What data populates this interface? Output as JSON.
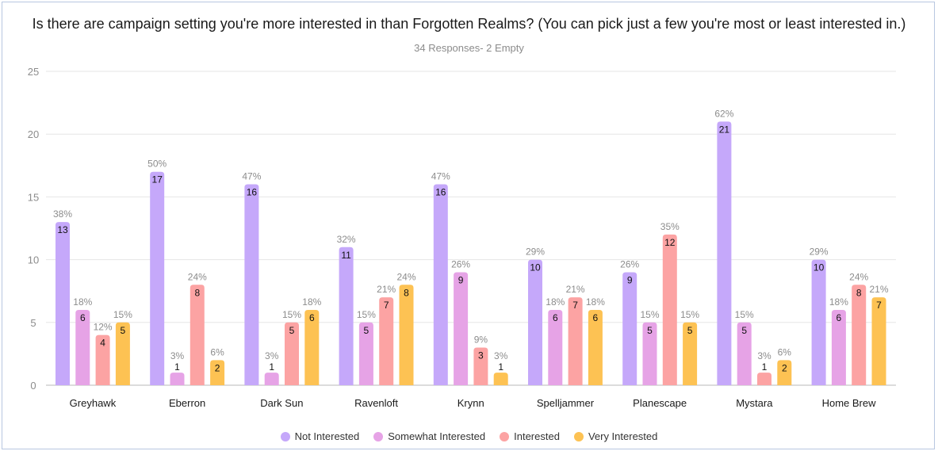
{
  "title": "Is there are campaign setting you're more interested in than Forgotten Realms? (You can pick just a few you're most or least interested in.)",
  "subtitle": "34 Responses- 2 Empty",
  "chart_data": {
    "type": "bar",
    "title": "Is there are campaign setting you're more interested in than Forgotten Realms? (You can pick just a few you're most or least interested in.)",
    "subtitle": "34 Responses- 2 Empty",
    "categories": [
      "Greyhawk",
      "Eberron",
      "Dark Sun",
      "Ravenloft",
      "Krynn",
      "Spelljammer",
      "Planescape",
      "Mystara",
      "Home Brew"
    ],
    "yticks": [
      "0",
      "5",
      "10",
      "15",
      "20",
      "25"
    ],
    "ylim": [
      0,
      25
    ],
    "grid": true,
    "legend_position": "bottom",
    "series": [
      {
        "name": "Not Interested",
        "color": "#c5a8fa",
        "values": [
          13,
          17,
          16,
          11,
          16,
          10,
          9,
          21,
          10
        ],
        "percents": [
          "38%",
          "50%",
          "47%",
          "32%",
          "47%",
          "29%",
          "26%",
          "62%",
          "29%"
        ]
      },
      {
        "name": "Somewhat Interested",
        "color": "#e6a3e6",
        "values": [
          6,
          1,
          1,
          5,
          9,
          6,
          5,
          5,
          6
        ],
        "percents": [
          "18%",
          "3%",
          "3%",
          "15%",
          "26%",
          "18%",
          "15%",
          "15%",
          "18%"
        ]
      },
      {
        "name": "Interested",
        "color": "#fca3a3",
        "values": [
          4,
          8,
          5,
          7,
          3,
          7,
          12,
          1,
          8
        ],
        "percents": [
          "12%",
          "24%",
          "15%",
          "21%",
          "9%",
          "21%",
          "35%",
          "3%",
          "24%"
        ]
      },
      {
        "name": "Very Interested",
        "color": "#fdc253",
        "values": [
          5,
          2,
          6,
          8,
          1,
          6,
          5,
          2,
          7
        ],
        "percents": [
          "15%",
          "6%",
          "18%",
          "24%",
          "3%",
          "18%",
          "15%",
          "6%",
          "21%"
        ]
      }
    ]
  }
}
